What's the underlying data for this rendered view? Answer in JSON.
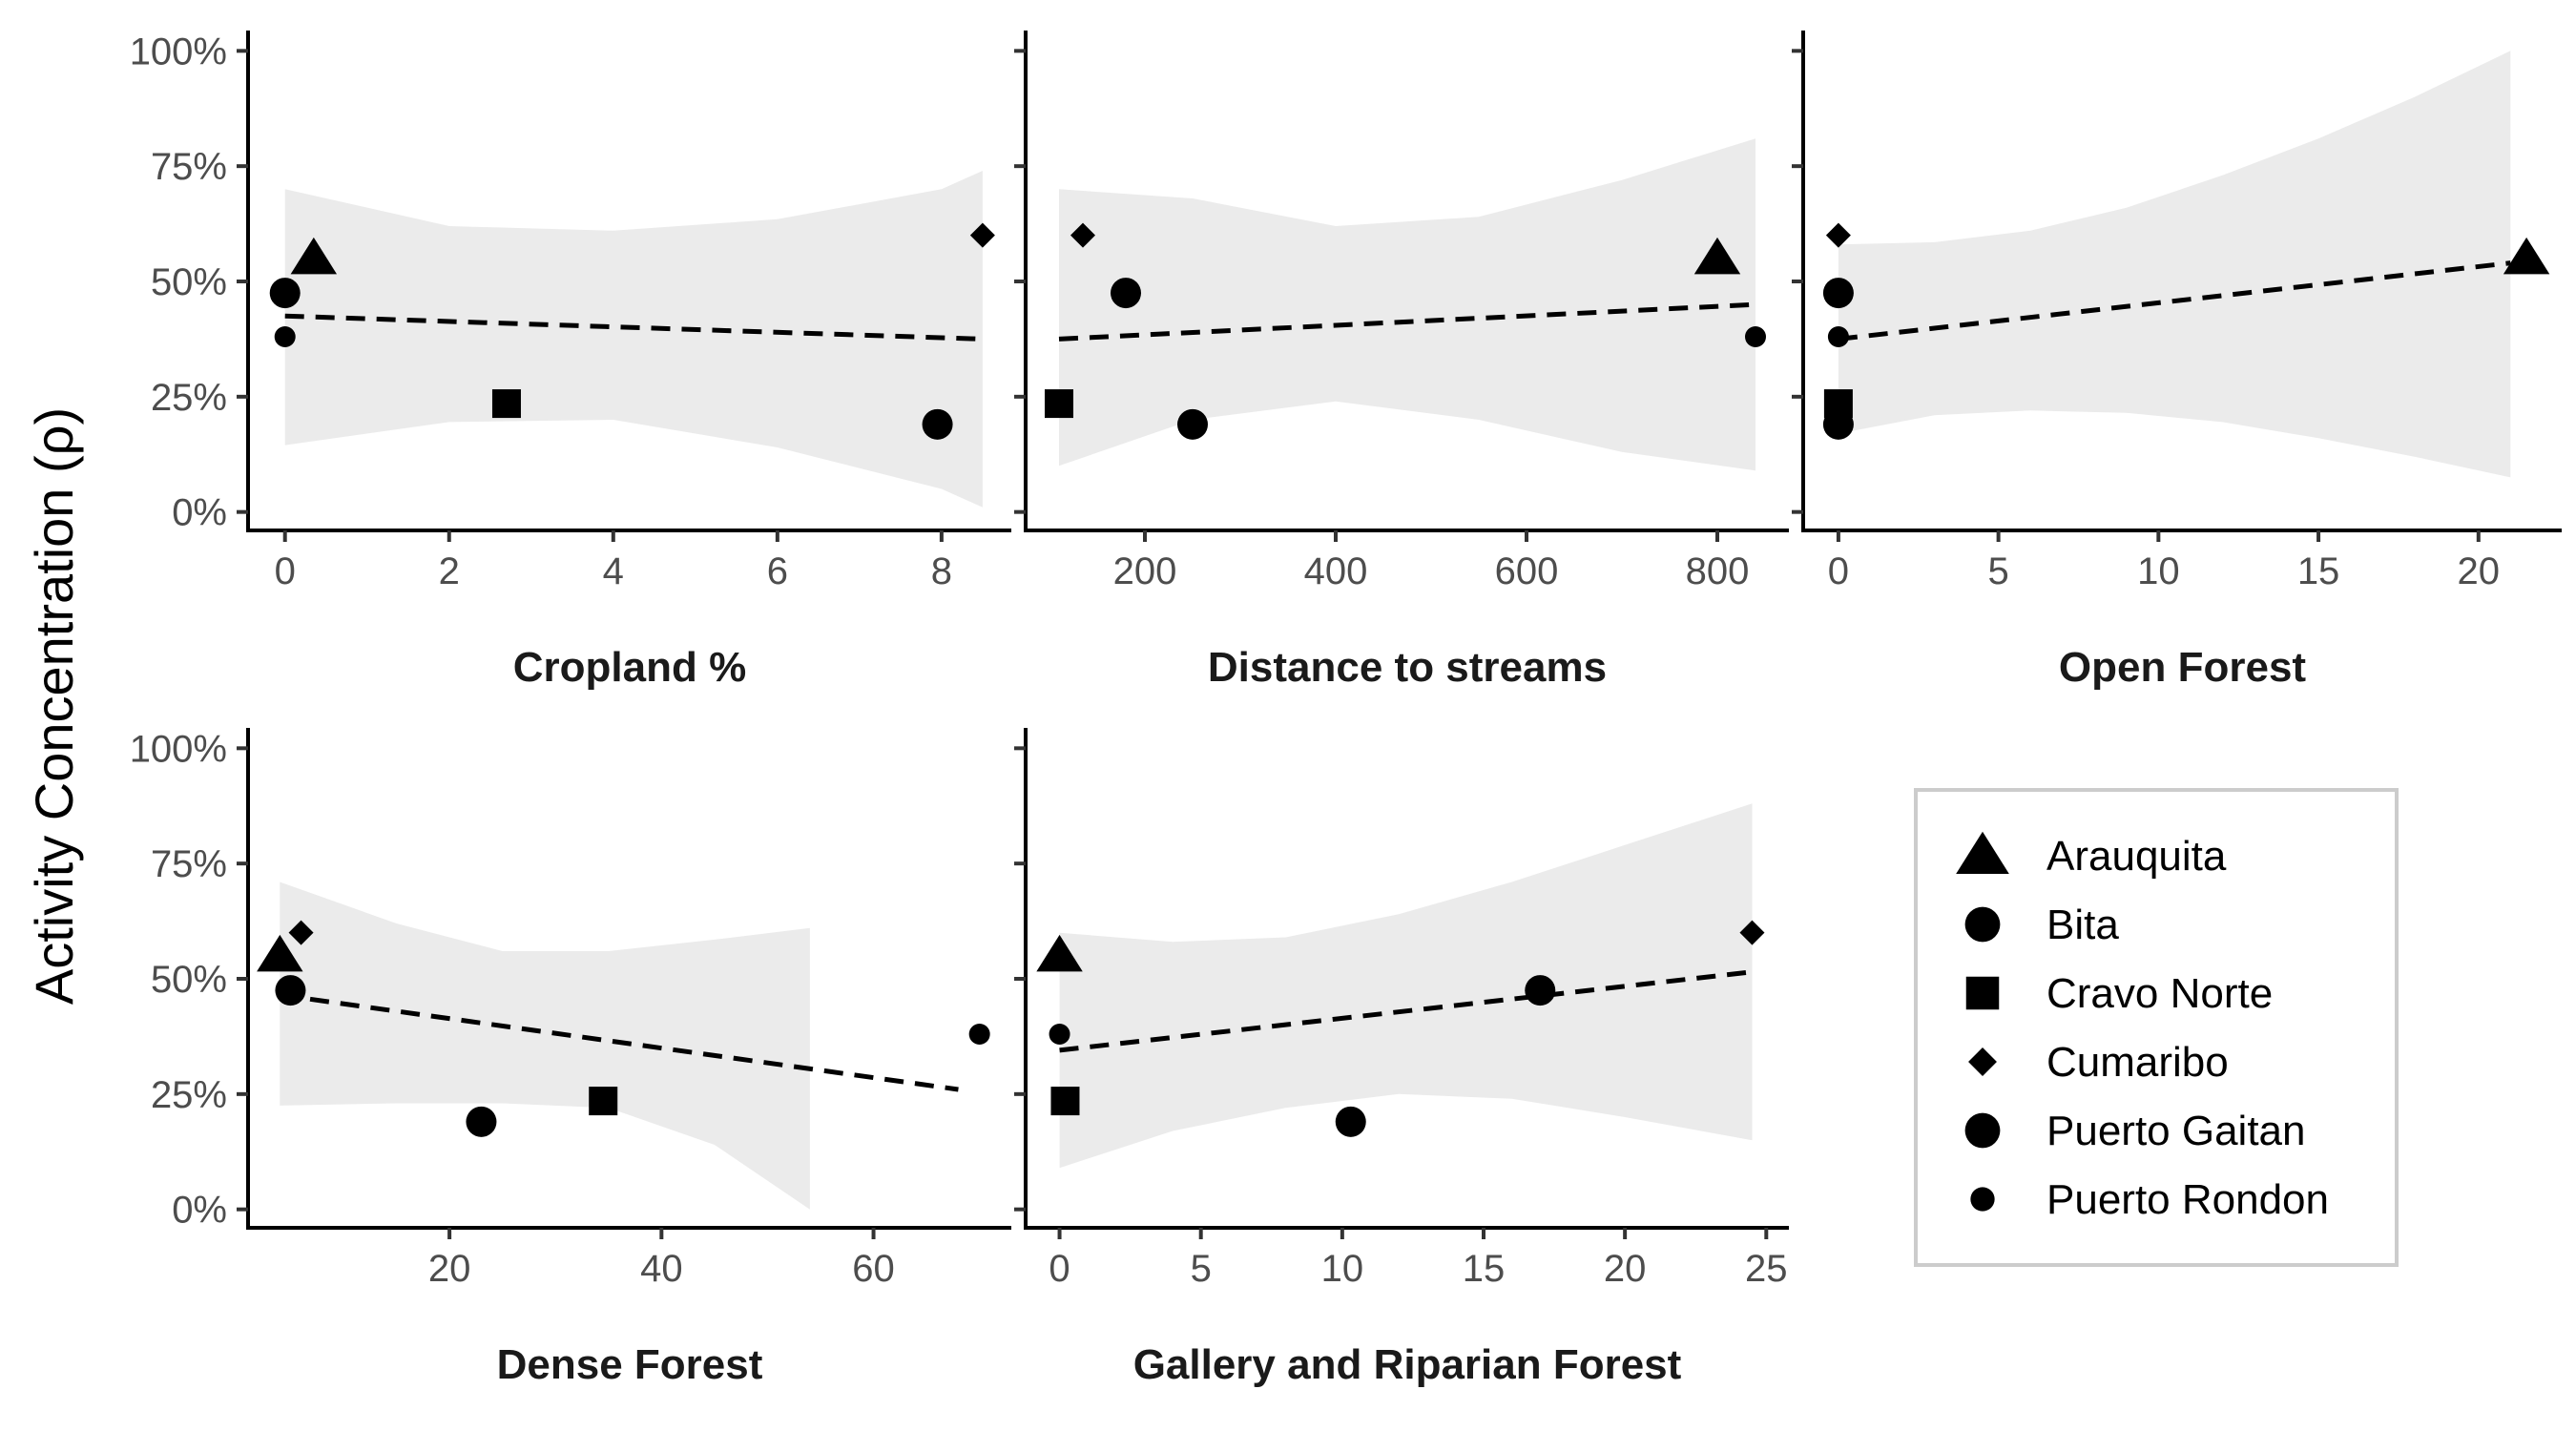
{
  "figure": {
    "ylabel": "Activity Concentration (ρ)",
    "y_ticks": [
      0,
      25,
      50,
      75,
      100
    ],
    "y_tick_labels": [
      "0%",
      "25%",
      "50%",
      "75%",
      "100%"
    ],
    "ylim": [
      -4,
      104
    ]
  },
  "legend": {
    "placement": "bottom-right",
    "items": [
      {
        "label": "Arauquita",
        "shape": "triangle"
      },
      {
        "label": "Bita",
        "shape": "circle-large"
      },
      {
        "label": "Cravo Norte",
        "shape": "square"
      },
      {
        "label": "Cumaribo",
        "shape": "diamond"
      },
      {
        "label": "Puerto Gaitan",
        "shape": "circle-large"
      },
      {
        "label": "Puerto Rondon",
        "shape": "circle-small"
      }
    ]
  },
  "chart_data": [
    {
      "type": "scatter",
      "xlabel": "Cropland %",
      "xlim": [
        -0.45,
        8.85
      ],
      "x_ticks": [
        0,
        2,
        4,
        6,
        8
      ],
      "x_tick_labels": [
        "0",
        "2",
        "4",
        "6",
        "8"
      ],
      "points": [
        {
          "site": "Arauquita",
          "x": 0.35,
          "y": 55
        },
        {
          "site": "Bita",
          "x": 0.0,
          "y": 47.5
        },
        {
          "site": "Cravo Norte",
          "x": 2.7,
          "y": 23.5
        },
        {
          "site": "Cumaribo",
          "x": 8.5,
          "y": 60
        },
        {
          "site": "Puerto Gaitan",
          "x": 7.95,
          "y": 19
        },
        {
          "site": "Puerto Rondon",
          "x": 0.0,
          "y": 38
        }
      ],
      "trend": [
        [
          0,
          42.5
        ],
        [
          8.5,
          37.5
        ]
      ],
      "band": {
        "x": [
          0,
          2,
          4,
          6,
          8,
          8.5
        ],
        "upper": [
          70,
          62,
          61,
          63.5,
          70,
          74
        ],
        "lower": [
          14.5,
          19.5,
          20,
          14,
          5,
          1
        ]
      }
    },
    {
      "type": "scatter",
      "xlabel": "Distance to streams",
      "xlim": [
        75,
        875
      ],
      "x_ticks": [
        200,
        400,
        600,
        800
      ],
      "x_tick_labels": [
        "200",
        "400",
        "600",
        "800"
      ],
      "points": [
        {
          "site": "Arauquita",
          "x": 800,
          "y": 55
        },
        {
          "site": "Bita",
          "x": 180,
          "y": 47.5
        },
        {
          "site": "Cravo Norte",
          "x": 110,
          "y": 23.5
        },
        {
          "site": "Cumaribo",
          "x": 135,
          "y": 60
        },
        {
          "site": "Puerto Gaitan",
          "x": 250,
          "y": 19
        },
        {
          "site": "Puerto Rondon",
          "x": 840,
          "y": 38
        }
      ],
      "trend": [
        [
          110,
          37.5
        ],
        [
          840,
          45
        ]
      ],
      "band": {
        "x": [
          110,
          250,
          400,
          550,
          700,
          840
        ],
        "upper": [
          70,
          68,
          62,
          64,
          72,
          81
        ],
        "lower": [
          10,
          20,
          24,
          20,
          13,
          9
        ]
      }
    },
    {
      "type": "scatter",
      "xlabel": "Open Forest",
      "xlim": [
        -1.1,
        22.6
      ],
      "x_ticks": [
        0,
        5,
        10,
        15,
        20
      ],
      "x_tick_labels": [
        "0",
        "5",
        "10",
        "15",
        "20"
      ],
      "points": [
        {
          "site": "Arauquita",
          "x": 21.5,
          "y": 55
        },
        {
          "site": "Bita",
          "x": 0.0,
          "y": 47.5
        },
        {
          "site": "Cravo Norte",
          "x": 0.0,
          "y": 23.5
        },
        {
          "site": "Cumaribo",
          "x": 0.0,
          "y": 60
        },
        {
          "site": "Puerto Gaitan",
          "x": 0.0,
          "y": 19
        },
        {
          "site": "Puerto Rondon",
          "x": 0.0,
          "y": 38
        }
      ],
      "trend": [
        [
          0,
          37.5
        ],
        [
          21,
          54
        ]
      ],
      "band": {
        "x": [
          0,
          3,
          6,
          9,
          12,
          15,
          18,
          21
        ],
        "upper": [
          58,
          58.5,
          61,
          66,
          73,
          81,
          90,
          100
        ],
        "lower": [
          17,
          21,
          22,
          21.5,
          19.5,
          16,
          12,
          7.5
        ]
      }
    },
    {
      "type": "scatter",
      "xlabel": "Dense Forest",
      "xlim": [
        1,
        73
      ],
      "x_ticks": [
        20,
        40,
        60
      ],
      "x_tick_labels": [
        "20",
        "40",
        "60"
      ],
      "points": [
        {
          "site": "Arauquita",
          "x": 4.0,
          "y": 55
        },
        {
          "site": "Bita",
          "x": 5.0,
          "y": 47.5
        },
        {
          "site": "Cravo Norte",
          "x": 34.5,
          "y": 23.5
        },
        {
          "site": "Cumaribo",
          "x": 6.0,
          "y": 60
        },
        {
          "site": "Puerto Gaitan",
          "x": 23.0,
          "y": 19
        },
        {
          "site": "Puerto Rondon",
          "x": 70.0,
          "y": 38
        }
      ],
      "trend": [
        [
          4,
          46.5
        ],
        [
          68,
          26
        ]
      ],
      "band": {
        "x": [
          4,
          15,
          25,
          35,
          45,
          54
        ],
        "upper": [
          71,
          62,
          56,
          56,
          58.5,
          61
        ],
        "lower": [
          22.5,
          23,
          23,
          22,
          14,
          0
        ]
      }
    },
    {
      "type": "scatter",
      "xlabel": "Gallery and Riparian Forest",
      "xlim": [
        -1.2,
        25.8
      ],
      "x_ticks": [
        0,
        5,
        10,
        15,
        20,
        25
      ],
      "x_tick_labels": [
        "0",
        "5",
        "10",
        "15",
        "20",
        "25"
      ],
      "points": [
        {
          "site": "Arauquita",
          "x": 0.0,
          "y": 55
        },
        {
          "site": "Bita",
          "x": 17.0,
          "y": 47.5
        },
        {
          "site": "Cravo Norte",
          "x": 0.2,
          "y": 23.5
        },
        {
          "site": "Cumaribo",
          "x": 24.5,
          "y": 60
        },
        {
          "site": "Puerto Gaitan",
          "x": 10.3,
          "y": 19
        },
        {
          "site": "Puerto Rondon",
          "x": 0.0,
          "y": 38
        }
      ],
      "trend": [
        [
          0,
          34.5
        ],
        [
          24.5,
          51.5
        ]
      ],
      "band": {
        "x": [
          0,
          4,
          8,
          12,
          16,
          20,
          24.5
        ],
        "upper": [
          60,
          58,
          59,
          64,
          71,
          79,
          88
        ],
        "lower": [
          9,
          17,
          22,
          25,
          24,
          20,
          15
        ]
      }
    }
  ]
}
